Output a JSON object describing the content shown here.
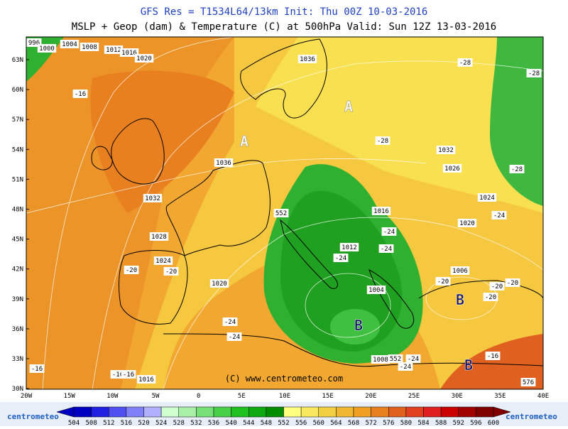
{
  "header": {
    "line1": "GFS Res = T1534L64/13km   Init: Thu 00Z 10-03-2016",
    "line2": "MSLP + Geop (dam) & Temperature (C) at 500hPa  Valid: Sun 12Z 13-03-2016"
  },
  "lat_labels": [
    "63N",
    "60N",
    "57N",
    "54N",
    "51N",
    "48N",
    "45N",
    "42N",
    "39N",
    "36N",
    "33N",
    "30N"
  ],
  "lon_labels": [
    "20W",
    "15W",
    "10W",
    "5W",
    "0",
    "5E",
    "10E",
    "15E",
    "20E",
    "25E",
    "30E",
    "35E",
    "40E"
  ],
  "isobar_labels": [
    "996",
    "1000",
    "1004",
    "1008",
    "1012",
    "1016",
    "1020",
    "1036",
    "1036",
    "1032",
    "1026",
    "1032",
    "1024",
    "1028",
    "1020",
    "1024",
    "1016",
    "1012",
    "1006",
    "1020",
    "1004",
    "552",
    "552",
    "1008",
    "1016",
    "576"
  ],
  "temperature_labels": [
    "-28",
    "-28",
    "-28",
    "-28",
    "-16",
    "-24",
    "-24",
    "-24",
    "-24",
    "-20",
    "-20",
    "-20",
    "-20",
    "-20",
    "-20",
    "-24",
    "-24",
    "-24",
    "-24",
    "-16",
    "-16",
    "-16",
    "-16"
  ],
  "centers": [
    "A",
    "A",
    "B",
    "B",
    "B"
  ],
  "credit": "(C) www.centrometeo.com",
  "logo": "centrometeo",
  "colorbar": {
    "labels": [
      504,
      508,
      512,
      516,
      520,
      524,
      528,
      532,
      536,
      540,
      544,
      548,
      552,
      556,
      560,
      564,
      568,
      572,
      576,
      580,
      584,
      588,
      592,
      596,
      600
    ],
    "colors": [
      "#0000c0",
      "#2020e0",
      "#5050f0",
      "#8080f8",
      "#b0b0ff",
      "#d0ffd0",
      "#a8f0a8",
      "#78e078",
      "#48d048",
      "#20c020",
      "#10a810",
      "#008c00",
      "#ffff80",
      "#f8e860",
      "#f0d040",
      "#f0b830",
      "#f0a020",
      "#e88020",
      "#e06020",
      "#e04020",
      "#e02020",
      "#c80000",
      "#a00000",
      "#800000"
    ]
  }
}
